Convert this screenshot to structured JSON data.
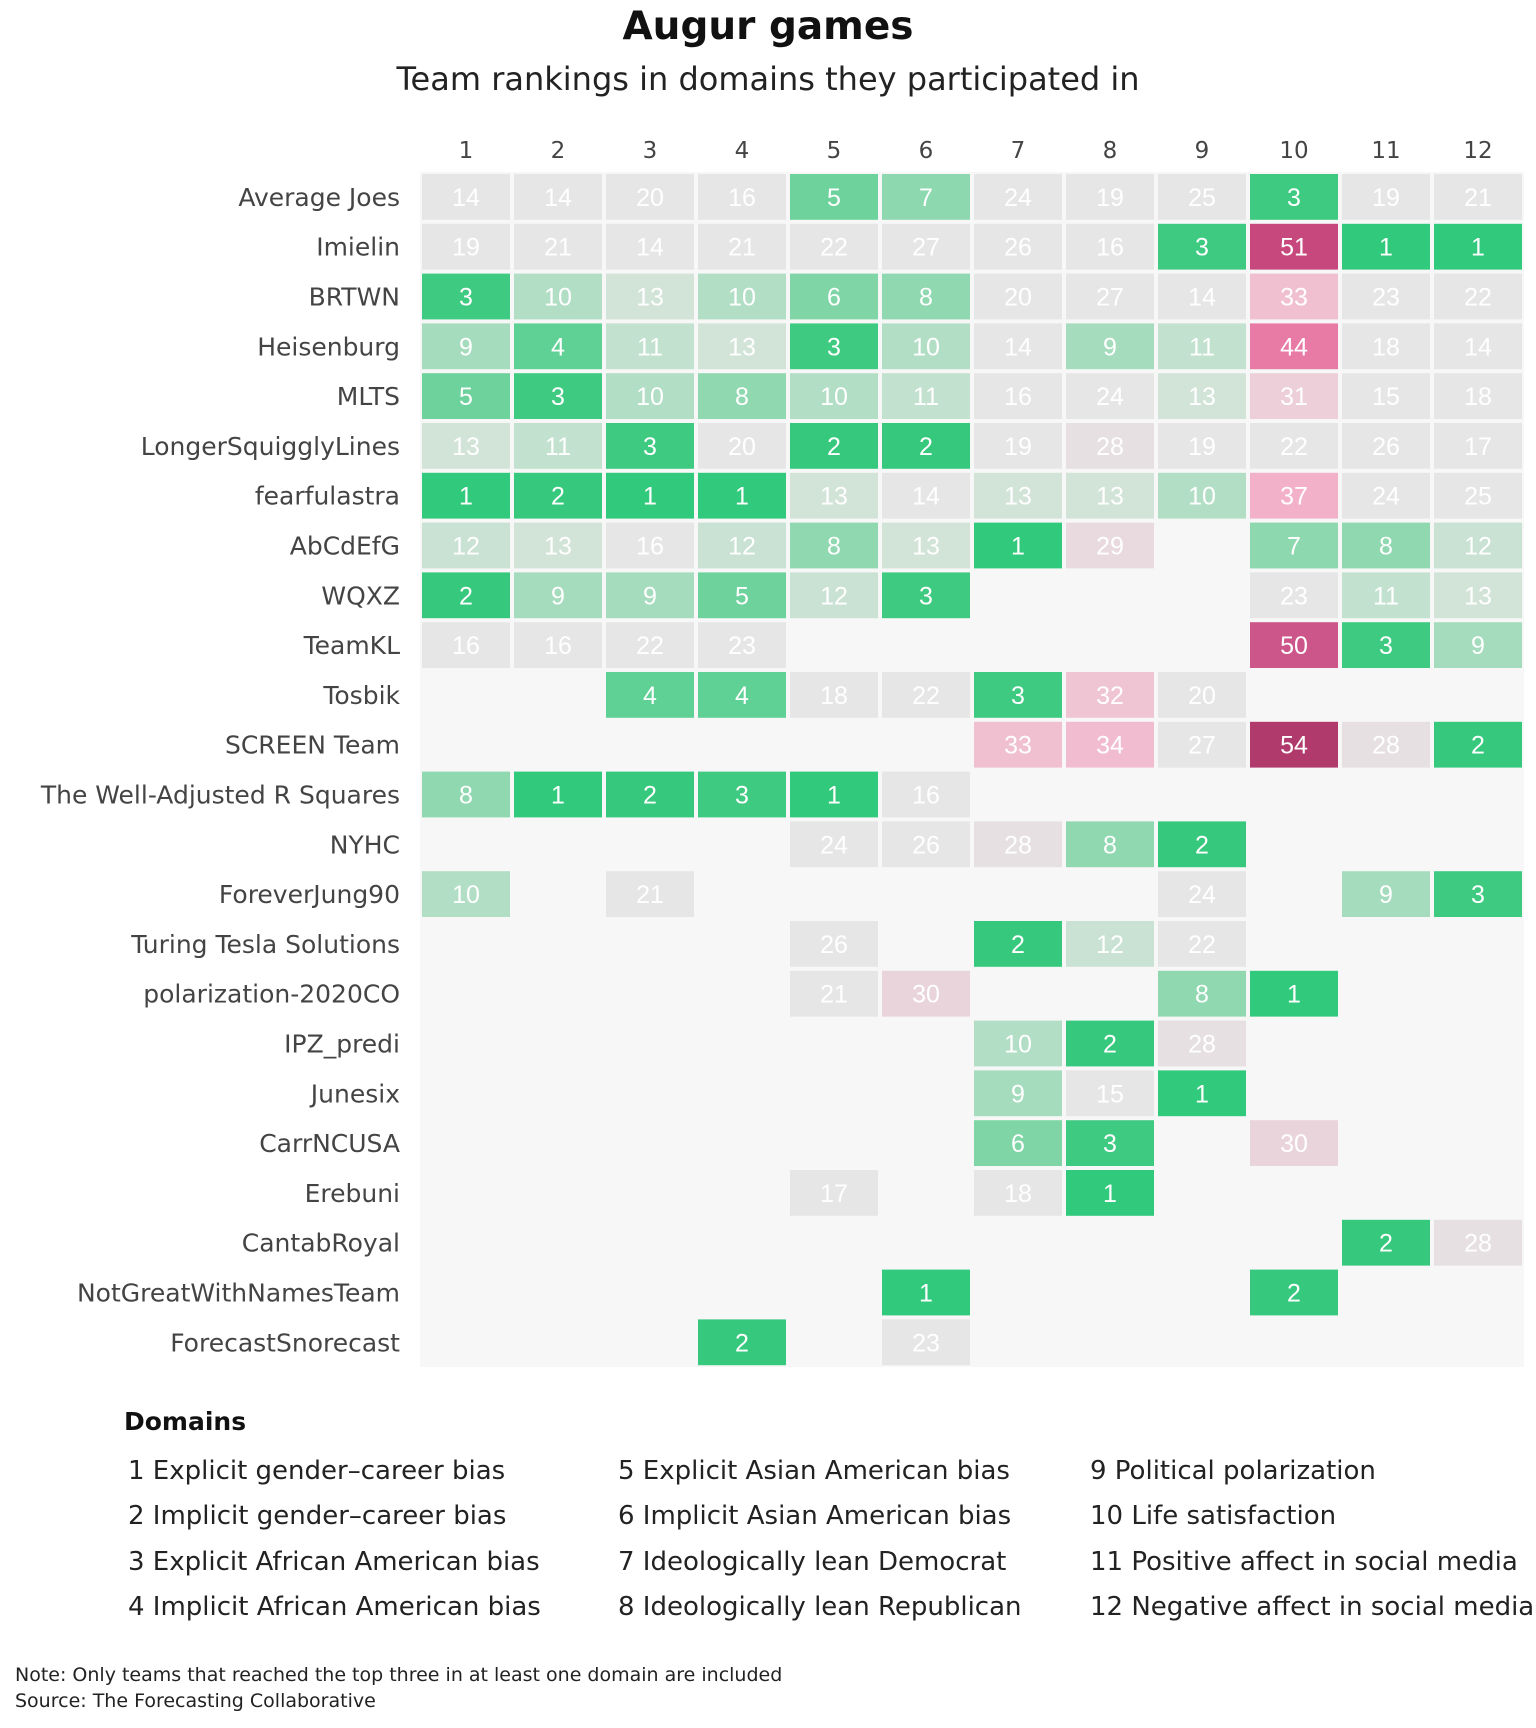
{
  "title": "Augur games",
  "subtitle": "Team rankings in domains they participated in",
  "legend": {
    "title": "Domains",
    "items": [
      "1 Explicit gender–career bias",
      "2 Implicit gender–career bias",
      "3 Explicit African American bias",
      "4 Implicit African American bias",
      "5 Explicit Asian American bias",
      "6 Implicit Asian American bias",
      "7 Ideologically lean Democrat",
      "8 Ideologically lean Republican",
      "9 Political polarization",
      "10 Life satisfaction",
      "11 Positive affect in social media",
      "12 Negative affect in social media"
    ]
  },
  "note": "Note: Only teams that reached the top three in at least one domain are included",
  "source": "Source: The Forecasting Collaborative",
  "chart_data": {
    "type": "heatmap",
    "x": [
      "1",
      "2",
      "3",
      "4",
      "5",
      "6",
      "7",
      "8",
      "9",
      "10",
      "11",
      "12"
    ],
    "y": [
      "Average Joes",
      "Imielin",
      "BRTWN",
      "Heisenburg",
      "MLTS",
      "LongerSquigglyLines",
      "fearfulastra",
      "AbCdEfG",
      "WQXZ",
      "TeamKL",
      "Tosbik",
      "SCREEN Team",
      "The Well-Adjusted R Squares",
      "NYHC",
      "ForeverJung90",
      "Turing Tesla Solutions",
      "polarization-2020CO",
      "IPZ_predi",
      "Junesix",
      "CarrNCUSA",
      "Erebuni",
      "CantabRoyal",
      "NotGreatWithNamesTeam",
      "ForecastSnorecast"
    ],
    "values": [
      [
        14,
        14,
        20,
        16,
        5,
        7,
        24,
        19,
        25,
        3,
        19,
        21
      ],
      [
        19,
        21,
        14,
        21,
        22,
        27,
        26,
        16,
        3,
        51,
        1,
        1
      ],
      [
        3,
        10,
        13,
        10,
        6,
        8,
        20,
        27,
        14,
        33,
        23,
        22
      ],
      [
        9,
        4,
        11,
        13,
        3,
        10,
        14,
        9,
        11,
        44,
        18,
        14
      ],
      [
        5,
        3,
        10,
        8,
        10,
        11,
        16,
        24,
        13,
        31,
        15,
        18
      ],
      [
        13,
        11,
        3,
        20,
        2,
        2,
        19,
        28,
        19,
        22,
        26,
        17
      ],
      [
        1,
        2,
        1,
        1,
        13,
        14,
        13,
        13,
        10,
        37,
        24,
        25
      ],
      [
        12,
        13,
        16,
        12,
        8,
        13,
        1,
        29,
        null,
        7,
        8,
        12
      ],
      [
        2,
        9,
        9,
        5,
        12,
        3,
        null,
        null,
        null,
        23,
        11,
        13
      ],
      [
        16,
        16,
        22,
        23,
        null,
        null,
        null,
        null,
        null,
        50,
        3,
        9
      ],
      [
        null,
        null,
        4,
        4,
        18,
        22,
        3,
        32,
        20,
        null,
        null,
        null
      ],
      [
        null,
        null,
        null,
        null,
        null,
        null,
        33,
        34,
        27,
        54,
        28,
        2
      ],
      [
        8,
        1,
        2,
        3,
        1,
        16,
        null,
        null,
        null,
        null,
        null,
        null
      ],
      [
        null,
        null,
        null,
        null,
        24,
        26,
        28,
        8,
        2,
        null,
        null,
        null
      ],
      [
        10,
        null,
        21,
        null,
        null,
        null,
        null,
        null,
        24,
        null,
        9,
        3
      ],
      [
        null,
        null,
        null,
        null,
        26,
        null,
        2,
        12,
        22,
        null,
        null,
        null
      ],
      [
        null,
        null,
        null,
        null,
        21,
        30,
        null,
        null,
        8,
        1,
        null,
        null
      ],
      [
        null,
        null,
        null,
        null,
        null,
        null,
        10,
        2,
        28,
        null,
        null,
        null
      ],
      [
        null,
        null,
        null,
        null,
        null,
        null,
        9,
        15,
        1,
        null,
        null,
        null
      ],
      [
        null,
        null,
        null,
        null,
        null,
        null,
        6,
        3,
        null,
        30,
        null,
        null
      ],
      [
        null,
        null,
        null,
        null,
        17,
        null,
        18,
        1,
        null,
        null,
        null,
        null
      ],
      [
        null,
        null,
        null,
        null,
        null,
        null,
        null,
        null,
        null,
        null,
        2,
        28
      ],
      [
        null,
        null,
        null,
        null,
        null,
        1,
        null,
        null,
        null,
        2,
        null,
        null
      ],
      [
        null,
        null,
        null,
        2,
        null,
        23,
        null,
        null,
        null,
        null,
        null,
        null
      ]
    ],
    "colors": {
      "rank_1": "#31c97b",
      "rank_2": "#36c97d",
      "rank_3": "#3fca82",
      "rank_4": "#5fd194",
      "rank_5": "#6dd29b",
      "rank_6": "#7fd5a6",
      "rank_7": "#8dd8af",
      "rank_8": "#8fd8b0",
      "rank_9": "#a6dcbe",
      "rank_10": "#b3dec6",
      "rank_11": "#c2e1ce",
      "rank_12": "#c9e2d3",
      "rank_13": "#d2e3d8",
      "neutral": "#e6e6e6",
      "rank_28": "#e6e0e3",
      "rank_29": "#e8dadf",
      "rank_30": "#ead4db",
      "rank_31": "#eccfd8",
      "rank_32": "#efc4d3",
      "rank_33": "#f0c0d1",
      "rank_34": "#f1bccf",
      "rank_37": "#f2b0c9",
      "rank_44": "#e87aa6",
      "rank_50": "#cc5689",
      "rank_51": "#c6487d",
      "rank_54": "#b03a6c",
      "panel_background": "#f7f7f7"
    }
  }
}
